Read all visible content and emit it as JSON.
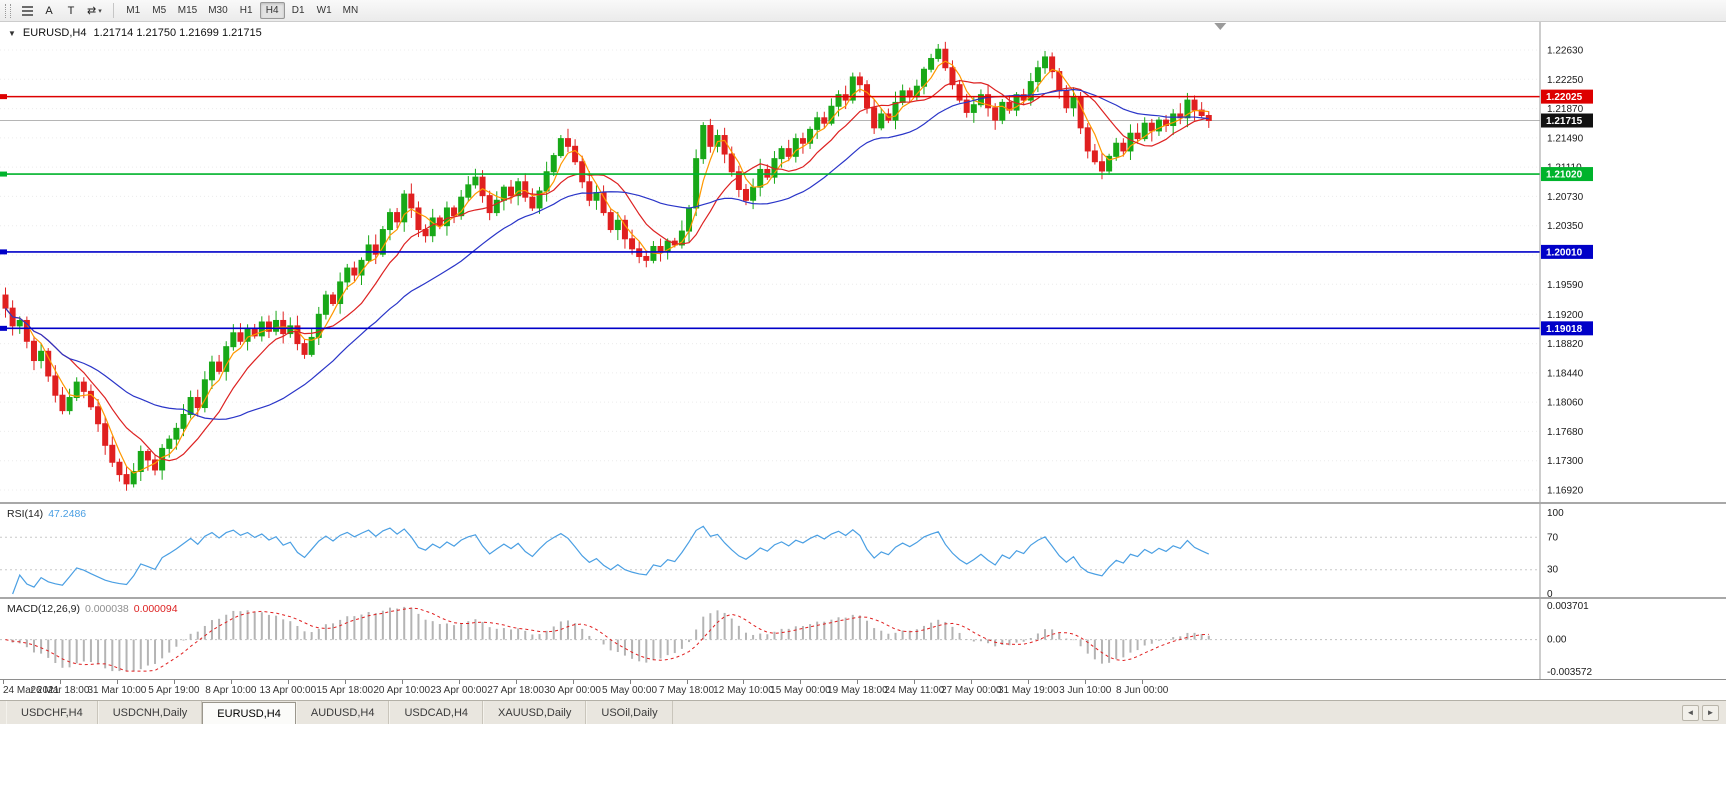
{
  "toolbar": {
    "tool_a": "A",
    "tool_t": "T",
    "timeframes": [
      "M1",
      "M5",
      "M15",
      "M30",
      "H1",
      "H4",
      "D1",
      "W1",
      "MN"
    ],
    "active_timeframe": "H4"
  },
  "chart": {
    "symbol_period": "EURUSD,H4",
    "ohlc_text": "1.21714 1.21750 1.21699 1.21715"
  },
  "chart_data": {
    "type": "candlestick",
    "symbol": "EURUSD",
    "timeframe": "H4",
    "current_bar": {
      "open": 1.21714,
      "high": 1.2175,
      "low": 1.21699,
      "close": 1.21715
    },
    "y_axis_ticks": [
      1.2263,
      1.2225,
      1.2187,
      1.2149,
      1.2111,
      1.2073,
      1.2035,
      1.1997,
      1.1959,
      1.192,
      1.1882,
      1.1844,
      1.1806,
      1.1768,
      1.173,
      1.1692
    ],
    "price_lines": [
      {
        "value": 1.22025,
        "label": "1.22025",
        "color": "#dd0000"
      },
      {
        "value": 1.2102,
        "label": "1.21020",
        "color": "#00b32c"
      },
      {
        "value": 1.2001,
        "label": "1.20010",
        "color": "#0000c8"
      },
      {
        "value": 1.19018,
        "label": "1.19018",
        "color": "#0000c8"
      }
    ],
    "current_price": {
      "value": 1.21715,
      "label": "1.21715",
      "box_color": "#111111"
    },
    "x_labels": [
      "24 Mar 2021",
      "26 Mar 18:00",
      "31 Mar 10:00",
      "5 Apr 19:00",
      "8 Apr 10:00",
      "13 Apr 00:00",
      "15 Apr 18:00",
      "20 Apr 10:00",
      "23 Apr 00:00",
      "27 Apr 18:00",
      "30 Apr 00:00",
      "5 May 00:00",
      "7 May 18:00",
      "12 May 10:00",
      "15 May 00:00",
      "19 May 18:00",
      "24 May 11:00",
      "27 May 00:00",
      "31 May 19:00",
      "3 Jun 10:00",
      "8 Jun 00:00"
    ],
    "bars_per_label": 8,
    "closes": [
      1.1928,
      1.1905,
      1.1912,
      1.1885,
      1.186,
      1.1872,
      1.184,
      1.1815,
      1.1795,
      1.1812,
      1.1832,
      1.182,
      1.18,
      1.1778,
      1.175,
      1.1728,
      1.1712,
      1.17,
      1.1716,
      1.1742,
      1.1731,
      1.1718,
      1.1746,
      1.1758,
      1.1772,
      1.179,
      1.1812,
      1.1799,
      1.1835,
      1.1858,
      1.1846,
      1.1878,
      1.1896,
      1.1885,
      1.1902,
      1.1892,
      1.191,
      1.1898,
      1.1912,
      1.1895,
      1.1905,
      1.1882,
      1.1868,
      1.189,
      1.192,
      1.1945,
      1.1934,
      1.1962,
      1.198,
      1.1971,
      1.199,
      1.201,
      1.1998,
      1.203,
      1.2052,
      1.204,
      1.2076,
      1.2058,
      1.203,
      1.2022,
      1.2045,
      1.2035,
      1.2058,
      1.2048,
      1.2072,
      1.2088,
      1.2098,
      1.2074,
      1.2052,
      1.2068,
      1.2085,
      1.2074,
      1.2092,
      1.2072,
      1.2058,
      1.208,
      1.2105,
      1.2126,
      1.2148,
      1.2138,
      1.2118,
      1.2092,
      1.2068,
      1.2078,
      1.2052,
      1.203,
      1.2042,
      1.2018,
      1.2005,
      1.1995,
      1.199,
      1.2008,
      1.2002,
      1.2015,
      1.201,
      1.2028,
      1.2058,
      1.2122,
      1.2165,
      1.2138,
      1.2152,
      1.2128,
      1.2105,
      1.2082,
      1.2068,
      1.2085,
      1.2108,
      1.2098,
      1.2122,
      1.2135,
      1.2125,
      1.2148,
      1.2142,
      1.216,
      1.2175,
      1.2168,
      1.219,
      1.2205,
      1.2198,
      1.2228,
      1.2218,
      1.2188,
      1.2162,
      1.218,
      1.2172,
      1.2195,
      1.221,
      1.2202,
      1.2216,
      1.2238,
      1.2252,
      1.2264,
      1.224,
      1.2218,
      1.2198,
      1.2182,
      1.2192,
      1.2205,
      1.2188,
      1.2172,
      1.2195,
      1.2185,
      1.2205,
      1.2198,
      1.2222,
      1.224,
      1.2254,
      1.2235,
      1.221,
      1.2188,
      1.2202,
      1.2162,
      1.2132,
      1.2118,
      1.2106,
      1.2125,
      1.2142,
      1.2132,
      1.2155,
      1.2148,
      1.2168,
      1.2158,
      1.2172,
      1.2165,
      1.218,
      1.2175,
      1.2198,
      1.2185,
      1.2178,
      1.21715
    ],
    "colors": {
      "up": "#18a818",
      "down": "#e02020",
      "ma_fast": "#ff9800",
      "ma_mid": "#dd2222",
      "ma_slow": "#2a35c8",
      "grid": "#ececec",
      "current_price_line": "#b5b5b5"
    },
    "rsi": {
      "name": "RSI(14)",
      "value": "47.2486",
      "levels": [
        100,
        70,
        30,
        0
      ],
      "line_color": "#4a9fe3"
    },
    "macd": {
      "name": "MACD(12,26,9)",
      "value_main": "0.000038",
      "value_signal": "0.000094",
      "scale_max": 0.003701,
      "scale_min": -0.003572,
      "scale_top_label": "0.003701",
      "scale_zero_label": "0.00",
      "scale_bottom_label": "-0.003572",
      "histogram_color": "#b4b4b4",
      "signal_color": "#e02020"
    }
  },
  "tabs": {
    "items": [
      "USDCHF,H4",
      "USDCNH,Daily",
      "EURUSD,H4",
      "AUDUSD,H4",
      "USDCAD,H4",
      "XAUUSD,Daily",
      "USOil,Daily"
    ],
    "active": "EURUSD,H4",
    "scroll_left": "◄",
    "scroll_right": "►"
  }
}
